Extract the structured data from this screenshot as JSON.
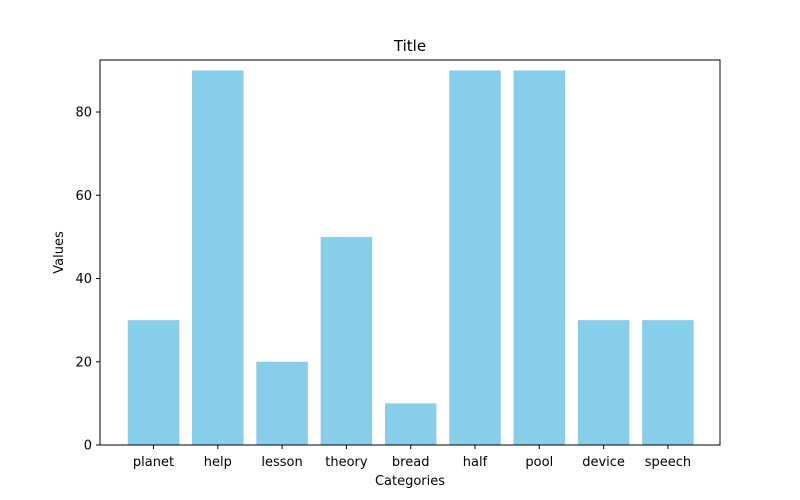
{
  "chart_data": {
    "type": "bar",
    "title": "Title",
    "xlabel": "Categories",
    "ylabel": "Values",
    "categories": [
      "planet",
      "help",
      "lesson",
      "theory",
      "bread",
      "half",
      "pool",
      "device",
      "speech"
    ],
    "values": [
      30,
      90,
      20,
      50,
      10,
      90,
      90,
      30,
      30
    ],
    "ylim": [
      0,
      92.5
    ],
    "yticks": [
      0,
      20,
      40,
      60,
      80
    ],
    "bar_color": "#87ceeb",
    "grid": false,
    "legend": "none"
  }
}
